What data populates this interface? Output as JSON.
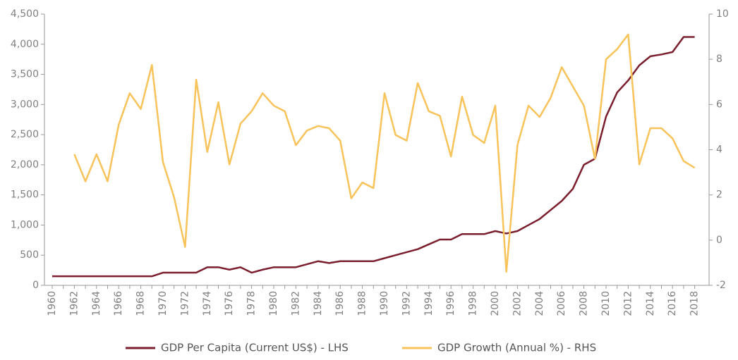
{
  "chart_data": {
    "type": "line",
    "x": [
      1960,
      1961,
      1962,
      1963,
      1964,
      1965,
      1966,
      1967,
      1968,
      1969,
      1970,
      1971,
      1972,
      1973,
      1974,
      1975,
      1976,
      1977,
      1978,
      1979,
      1980,
      1981,
      1982,
      1983,
      1984,
      1985,
      1986,
      1987,
      1988,
      1989,
      1990,
      1991,
      1992,
      1993,
      1994,
      1995,
      1996,
      1997,
      1998,
      1999,
      2000,
      2001,
      2002,
      2003,
      2004,
      2005,
      2006,
      2007,
      2008,
      2009,
      2010,
      2011,
      2012,
      2013,
      2014,
      2015,
      2016,
      2017,
      2018
    ],
    "xlim": [
      1959.3,
      2019.3
    ],
    "xticks": [
      1960,
      1962,
      1964,
      1966,
      1968,
      1970,
      1972,
      1974,
      1976,
      1978,
      1980,
      1982,
      1984,
      1986,
      1988,
      1990,
      1992,
      1994,
      1996,
      1998,
      2000,
      2002,
      2004,
      2006,
      2008,
      2010,
      2012,
      2014,
      2016,
      2018
    ],
    "ylim": [
      0,
      4500
    ],
    "yticks": [
      0,
      500,
      {
        "value": 1000,
        "label": "1,000"
      },
      {
        "value": 1500,
        "label": "1,500"
      },
      {
        "value": 2000,
        "label": "2,000"
      },
      {
        "value": 2500,
        "label": "2,500"
      },
      {
        "value": 3000,
        "label": "3,000"
      },
      {
        "value": 3500,
        "label": "3,500"
      },
      {
        "value": 4000,
        "label": "4,000"
      },
      {
        "value": 4500,
        "label": "4,500"
      }
    ],
    "y2lim": [
      -2,
      10
    ],
    "y2ticks": [
      -2,
      0,
      2,
      4,
      6,
      8,
      10
    ],
    "legend": "bottom",
    "series": [
      {
        "name": "GDP Per Capita (Current US$) - LHS",
        "color": "#7b1f2e",
        "values": [
          150,
          150,
          150,
          150,
          150,
          150,
          150,
          150,
          150,
          150,
          210,
          210,
          210,
          210,
          300,
          300,
          260,
          300,
          210,
          260,
          300,
          300,
          300,
          350,
          400,
          370,
          400,
          400,
          400,
          400,
          450,
          500,
          550,
          600,
          680,
          760,
          760,
          850,
          850,
          850,
          900,
          860,
          900,
          1000,
          1100,
          1250,
          1400,
          1600,
          2000,
          2100,
          2800,
          3200,
          3400,
          3650,
          3800,
          3830,
          3870,
          4120,
          4120
        ]
      },
      {
        "name": "GDP Growth (Annual %) - RHS",
        "color": "#f7c35a",
        "axis": "y2",
        "values": [
          null,
          null,
          3.8,
          2.6,
          3.8,
          2.6,
          5.1,
          6.5,
          5.8,
          7.75,
          3.45,
          1.9,
          -0.3,
          7.1,
          3.9,
          6.1,
          3.35,
          5.15,
          5.7,
          6.5,
          5.95,
          5.7,
          4.2,
          4.85,
          5.05,
          4.95,
          4.4,
          1.85,
          2.55,
          2.3,
          6.5,
          4.65,
          4.4,
          6.95,
          5.7,
          5.5,
          3.7,
          6.35,
          4.65,
          4.3,
          5.95,
          -1.4,
          4.2,
          5.95,
          5.45,
          6.3,
          7.65,
          6.8,
          5.95,
          3.6,
          8,
          8.45,
          9.1,
          3.35,
          4.95,
          4.95,
          4.5,
          3.5,
          3.2
        ]
      }
    ]
  }
}
